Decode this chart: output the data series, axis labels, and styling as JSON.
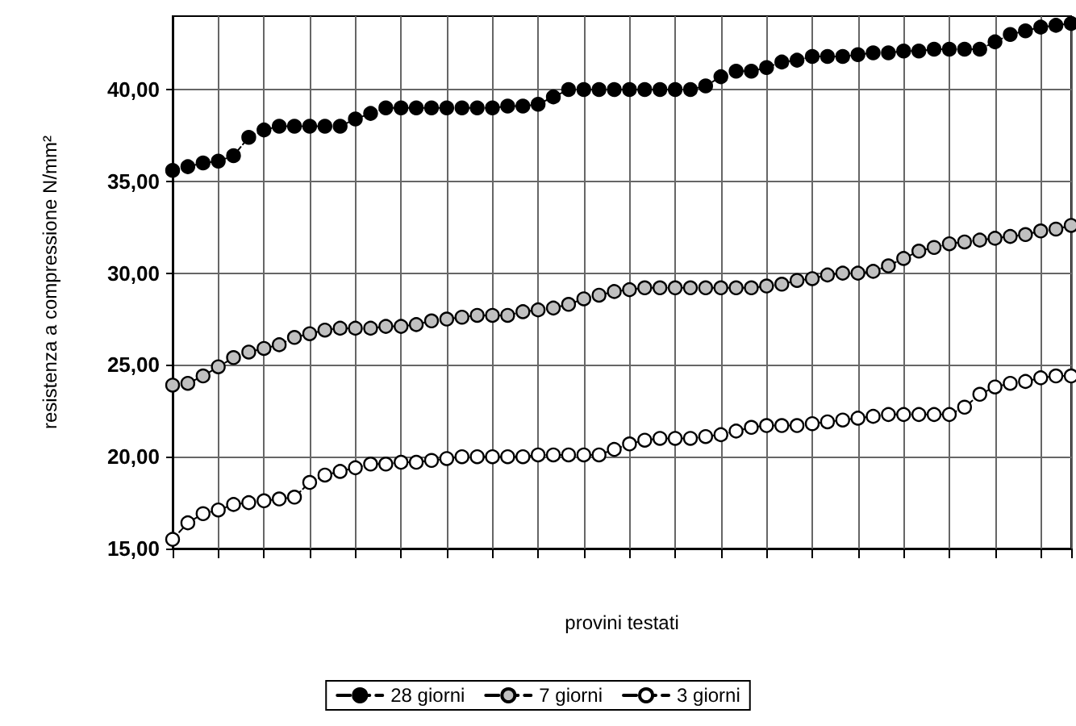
{
  "chart_data": {
    "type": "line",
    "xlabel": "provini testati",
    "ylabel": "resistenza a compressione N/mm²",
    "categories": [
      null,
      null,
      null,
      null,
      null,
      null,
      null,
      null,
      null,
      null,
      null,
      null,
      null,
      null,
      null,
      null,
      null,
      null,
      null,
      null,
      null,
      null,
      null,
      null,
      null,
      null,
      null,
      null,
      null,
      null,
      null,
      null,
      null,
      null,
      null,
      null,
      null,
      null,
      null,
      null,
      null,
      null,
      null,
      null,
      null,
      null,
      null,
      null,
      null,
      null,
      null,
      null,
      null,
      null,
      null,
      null,
      null,
      null,
      null,
      null
    ],
    "series": [
      {
        "name": "28 giorni",
        "color": "#000000",
        "values": [
          35.6,
          35.8,
          36.0,
          36.1,
          36.4,
          37.4,
          37.8,
          38.0,
          38.0,
          38.0,
          38.0,
          38.0,
          38.4,
          38.7,
          39.0,
          39.0,
          39.0,
          39.0,
          39.0,
          39.0,
          39.0,
          39.0,
          39.1,
          39.1,
          39.2,
          39.6,
          40.0,
          40.0,
          40.0,
          40.0,
          40.0,
          40.0,
          40.0,
          40.0,
          40.0,
          40.2,
          40.7,
          41.0,
          41.0,
          41.2,
          41.5,
          41.6,
          41.8,
          41.8,
          41.8,
          41.9,
          42.0,
          42.0,
          42.1,
          42.1,
          42.2,
          42.2,
          42.2,
          42.2,
          42.6,
          43.0,
          43.2,
          43.4,
          43.5,
          43.6
        ]
      },
      {
        "name": "7 giorni",
        "color": "#c0c0c0",
        "values": [
          23.9,
          24.0,
          24.4,
          24.9,
          25.4,
          25.7,
          25.9,
          26.1,
          26.5,
          26.7,
          26.9,
          27.0,
          27.0,
          27.0,
          27.1,
          27.1,
          27.2,
          27.4,
          27.5,
          27.6,
          27.7,
          27.7,
          27.7,
          27.9,
          28.0,
          28.1,
          28.3,
          28.6,
          28.8,
          29.0,
          29.1,
          29.2,
          29.2,
          29.2,
          29.2,
          29.2,
          29.2,
          29.2,
          29.2,
          29.3,
          29.4,
          29.6,
          29.7,
          29.9,
          30.0,
          30.0,
          30.1,
          30.4,
          30.8,
          31.2,
          31.4,
          31.6,
          31.7,
          31.8,
          31.9,
          32.0,
          32.1,
          32.3,
          32.4,
          32.6
        ]
      },
      {
        "name": "3 giorni",
        "color": "#ffffff",
        "values": [
          15.5,
          16.4,
          16.9,
          17.1,
          17.4,
          17.5,
          17.6,
          17.7,
          17.8,
          18.6,
          19.0,
          19.2,
          19.4,
          19.6,
          19.6,
          19.7,
          19.7,
          19.8,
          19.9,
          20.0,
          20.0,
          20.0,
          20.0,
          20.0,
          20.1,
          20.1,
          20.1,
          20.1,
          20.1,
          20.4,
          20.7,
          20.9,
          21.0,
          21.0,
          21.0,
          21.1,
          21.2,
          21.4,
          21.6,
          21.7,
          21.7,
          21.7,
          21.8,
          21.9,
          22.0,
          22.1,
          22.2,
          22.3,
          22.3,
          22.3,
          22.3,
          22.3,
          22.7,
          23.4,
          23.8,
          24.0,
          24.1,
          24.3,
          24.4,
          24.4
        ]
      }
    ],
    "ylim": [
      15,
      44
    ],
    "yticks": [
      {
        "value": 15,
        "label": "15,00"
      },
      {
        "value": 20,
        "label": "20,00"
      },
      {
        "value": 25,
        "label": "25,00"
      },
      {
        "value": 30,
        "label": "30,00"
      },
      {
        "value": 35,
        "label": "35,00"
      },
      {
        "value": 40,
        "label": "40,00"
      }
    ],
    "grid": true,
    "legend": "bottom",
    "marker": "circle",
    "line_style": "dashed"
  }
}
